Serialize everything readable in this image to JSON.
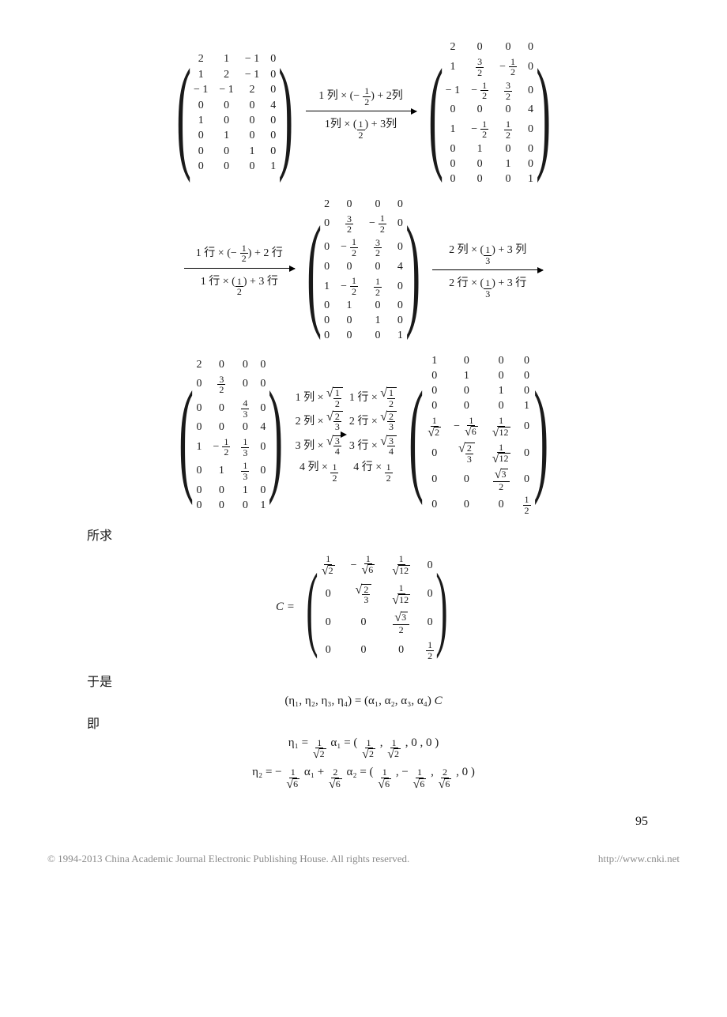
{
  "step1": {
    "matrixA": [
      [
        "2",
        "1",
        "-1",
        "0"
      ],
      [
        "1",
        "2",
        "-1",
        "0"
      ],
      [
        "-1",
        "-1",
        "2",
        "0"
      ],
      [
        "0",
        "0",
        "0",
        "4"
      ],
      [
        "1",
        "0",
        "0",
        "0"
      ],
      [
        "0",
        "1",
        "0",
        "0"
      ],
      [
        "0",
        "0",
        "1",
        "0"
      ],
      [
        "0",
        "0",
        "0",
        "1"
      ]
    ],
    "op_top": "1 列 × ( − ½ ) + 2列",
    "op_bot": "1列 × ( ½ ) + 3列",
    "matrixB": [
      [
        "2",
        "0",
        "0",
        "0"
      ],
      [
        "1",
        "3/2",
        "-1/2",
        "0"
      ],
      [
        "-1",
        "-1/2",
        "3/2",
        "0"
      ],
      [
        "0",
        "0",
        "0",
        "4"
      ],
      [
        "1",
        "-1/2",
        "1/2",
        "0"
      ],
      [
        "0",
        "1",
        "0",
        "0"
      ],
      [
        "0",
        "0",
        "1",
        "0"
      ],
      [
        "0",
        "0",
        "0",
        "1"
      ]
    ]
  },
  "step2": {
    "op_top": "1 行 × ( − ½ ) + 2 行",
    "op_bot": "1 行 × ( ½ ) + 3 行",
    "matrix": [
      [
        "2",
        "0",
        "0",
        "0"
      ],
      [
        "0",
        "3/2",
        "-1/2",
        "0"
      ],
      [
        "0",
        "-1/2",
        "3/2",
        "0"
      ],
      [
        "0",
        "0",
        "0",
        "4"
      ],
      [
        "1",
        "-1/2",
        "1/2",
        "0"
      ],
      [
        "0",
        "1",
        "0",
        "0"
      ],
      [
        "0",
        "0",
        "1",
        "0"
      ],
      [
        "0",
        "0",
        "0",
        "1"
      ]
    ],
    "op2_top": "2 列 × ( ⅓ ) + 3 列",
    "op2_bot": "2 行 × ( ⅓ ) + 3 行"
  },
  "step3": {
    "matrixA": [
      [
        "2",
        "0",
        "0",
        "0"
      ],
      [
        "0",
        "3/2",
        "0",
        "0"
      ],
      [
        "0",
        "0",
        "4/3",
        "0"
      ],
      [
        "0",
        "0",
        "0",
        "4"
      ],
      [
        "1",
        "-1/2",
        "1/3",
        "0"
      ],
      [
        "0",
        "1",
        "1/3",
        "0"
      ],
      [
        "0",
        "0",
        "1",
        "0"
      ],
      [
        "0",
        "0",
        "0",
        "1"
      ]
    ],
    "ops_col": [
      "1 列 × √(1/2)",
      "2 列 × √(2/3)",
      "3 列 × √(3/4)",
      "4 列 × ½"
    ],
    "ops_row": [
      "1 行 × √(1/2)",
      "2 行 × √(2/3)",
      "3 行 × √(3/4)",
      "4 行 × ½"
    ],
    "matrixB": [
      [
        "1",
        "0",
        "0",
        "0"
      ],
      [
        "0",
        "1",
        "0",
        "0"
      ],
      [
        "0",
        "0",
        "1",
        "0"
      ],
      [
        "0",
        "0",
        "0",
        "1"
      ],
      [
        "1/√2",
        "-1/√6",
        "1/√12",
        "0"
      ],
      [
        "0",
        "√(2/3)",
        "1/√12",
        "0"
      ],
      [
        "0",
        "0",
        "√3/2",
        "0"
      ],
      [
        "0",
        "0",
        "0",
        "1/2"
      ]
    ]
  },
  "label_found": "所求",
  "C_matrix": [
    [
      "1/√2",
      "-1/√6",
      "1/√12",
      "0"
    ],
    [
      "0",
      "√(2/3)",
      "1/√12",
      "0"
    ],
    [
      "0",
      "0",
      "√3/2",
      "0"
    ],
    [
      "0",
      "0",
      "0",
      "1/2"
    ]
  ],
  "label_so": "于是",
  "eq_eta_alpha": "(η₁, η₂, η₃, η₄) = (α₁, α₂, α₃, α₄) C",
  "label_ie": "即",
  "eta1_line": "η₁ = (1/√2) α₁ = ( 1/√2 ,  1/√2 , 0 , 0 )",
  "eta2_line": "η₂ = − (1/√6) α₁ + (2/√6) α₂ = ( 1/√6 , − 1/√6 ,  2/√6 ,  0 )",
  "page_number": "95",
  "footer_left": "© 1994-2013 China Academic Journal Electronic Publishing House. All rights reserved.",
  "footer_right": "http://www.cnki.net"
}
